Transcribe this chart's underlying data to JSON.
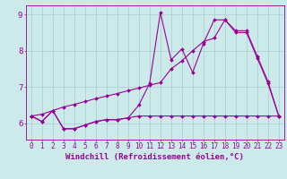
{
  "xlabel": "Windchill (Refroidissement éolien,°C)",
  "background_color": "#cceaea",
  "grid_color": "#aacccc",
  "line_color": "#990099",
  "x_min": -0.5,
  "x_max": 23.5,
  "y_min": 5.55,
  "y_max": 9.25,
  "x_ticks": [
    0,
    1,
    2,
    3,
    4,
    5,
    6,
    7,
    8,
    9,
    10,
    11,
    12,
    13,
    14,
    15,
    16,
    17,
    18,
    19,
    20,
    21,
    22,
    23
  ],
  "y_ticks": [
    6,
    7,
    8,
    9
  ],
  "series1_x": [
    0,
    1,
    2,
    3,
    4,
    5,
    6,
    7,
    8,
    9,
    10,
    11,
    12,
    13,
    14,
    15,
    16,
    17,
    18,
    19,
    20,
    21,
    22,
    23
  ],
  "series1_y": [
    6.2,
    6.05,
    6.35,
    5.85,
    5.85,
    5.95,
    6.05,
    6.1,
    6.1,
    6.15,
    6.2,
    6.2,
    6.2,
    6.2,
    6.2,
    6.2,
    6.2,
    6.2,
    6.2,
    6.2,
    6.2,
    6.2,
    6.2,
    6.2
  ],
  "series2_x": [
    0,
    1,
    2,
    3,
    4,
    5,
    6,
    7,
    8,
    9,
    10,
    11,
    12,
    13,
    14,
    15,
    16,
    17,
    18,
    19,
    20,
    21,
    22,
    23
  ],
  "series2_y": [
    6.2,
    6.05,
    6.35,
    5.85,
    5.85,
    5.95,
    6.05,
    6.1,
    6.1,
    6.15,
    6.5,
    7.1,
    9.05,
    7.75,
    8.05,
    7.4,
    8.2,
    8.85,
    8.85,
    8.5,
    8.5,
    7.8,
    7.1,
    6.2
  ],
  "series3_x": [
    0,
    1,
    2,
    3,
    4,
    5,
    6,
    7,
    8,
    9,
    10,
    11,
    12,
    13,
    14,
    15,
    16,
    17,
    18,
    19,
    20,
    21,
    22,
    23
  ],
  "series3_y": [
    6.2,
    6.25,
    6.35,
    6.45,
    6.52,
    6.6,
    6.68,
    6.75,
    6.82,
    6.9,
    6.97,
    7.05,
    7.12,
    7.5,
    7.72,
    8.0,
    8.25,
    8.35,
    8.85,
    8.55,
    8.55,
    7.85,
    7.15,
    6.2
  ],
  "tick_fontsize": 5.5,
  "xlabel_fontsize": 6.5,
  "line_width": 0.8,
  "marker_size": 2.0
}
